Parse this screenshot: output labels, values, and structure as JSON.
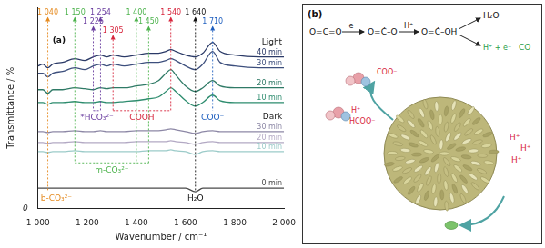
{
  "chart_data": {
    "type": "line",
    "panel_label": "(a)",
    "x_label": "Wavenumber / cm⁻¹",
    "y_label": "Transmittance / %",
    "xlim": [
      1000,
      2000
    ],
    "xticks": [
      {
        "value": 1000,
        "label": "1 000"
      },
      {
        "value": 1200,
        "label": "1 200"
      },
      {
        "value": 1400,
        "label": "1 400"
      },
      {
        "value": 1600,
        "label": "1 600"
      },
      {
        "value": 1800,
        "label": "1 800"
      },
      {
        "value": 2000,
        "label": "2 000"
      }
    ],
    "ylim": [
      0,
      110
    ],
    "yticks": [
      0
    ],
    "grid": false,
    "x": [
      1000,
      1020,
      1040,
      1060,
      1100,
      1150,
      1190,
      1225,
      1254,
      1280,
      1305,
      1350,
      1400,
      1450,
      1490,
      1520,
      1540,
      1560,
      1600,
      1640,
      1670,
      1710,
      1740,
      1800,
      1900,
      2000
    ],
    "series": [
      {
        "name": "40 min",
        "group": "Light",
        "color": "#2b3a67",
        "line_style": "solid",
        "values": [
          78,
          79,
          77,
          79,
          80,
          82,
          81,
          83,
          84,
          83,
          84,
          83,
          84,
          85,
          85,
          86,
          87,
          86,
          84,
          83,
          85,
          91,
          86,
          84,
          83,
          83
        ]
      },
      {
        "name": "30 min",
        "group": "Light",
        "color": "#3d4f7d",
        "line_style": "solid",
        "values": [
          74,
          74,
          72,
          74,
          75,
          77,
          76,
          78,
          79,
          78,
          79,
          78,
          79,
          80,
          80,
          81,
          82,
          81,
          78,
          76,
          79,
          86,
          80,
          78,
          77,
          77
        ]
      },
      {
        "name": "20 min",
        "group": "Light",
        "color": "#2f7a66",
        "line_style": "solid",
        "values": [
          65,
          65,
          63,
          65,
          65,
          66,
          65.5,
          65,
          66,
          65.5,
          66,
          66,
          67,
          68,
          70,
          74,
          76,
          73,
          67,
          64,
          66,
          70,
          67,
          66,
          66,
          66
        ]
      },
      {
        "name": "10 min",
        "group": "Light",
        "color": "#2d8c6e",
        "line_style": "solid",
        "values": [
          58,
          58,
          57,
          58,
          58,
          58.5,
          58,
          58,
          58.5,
          58,
          58,
          58.5,
          59,
          60,
          61,
          64,
          66,
          64,
          59,
          56,
          58,
          62,
          59,
          58,
          58,
          58
        ]
      },
      {
        "name": "30 min",
        "group": "Dark",
        "color": "#8d88a6",
        "line_style": "solid",
        "values": [
          42,
          42,
          41.5,
          42,
          42,
          42.5,
          42,
          42,
          42.5,
          42,
          42,
          42,
          42.5,
          42.5,
          42.5,
          43,
          43.5,
          43,
          42,
          41,
          42,
          42.5,
          42,
          42,
          42,
          42
        ]
      },
      {
        "name": "20 min",
        "group": "Dark",
        "color": "#b3a9c4",
        "line_style": "solid",
        "values": [
          36,
          36,
          35.5,
          36,
          36,
          36.5,
          36,
          36,
          36,
          36,
          36,
          36,
          36.5,
          36.5,
          36.5,
          36.5,
          37,
          36.5,
          36,
          35,
          36,
          36.5,
          36,
          36,
          36,
          36
        ]
      },
      {
        "name": "10 min",
        "group": "Dark",
        "color": "#9ccbc9",
        "line_style": "solid",
        "values": [
          31,
          31,
          30.5,
          31,
          31,
          31.5,
          31,
          31,
          31,
          31,
          31,
          31,
          31,
          31.5,
          31.5,
          31.5,
          32,
          31.5,
          31,
          29.5,
          31,
          31.5,
          31,
          31,
          31,
          31
        ]
      },
      {
        "name": "0 min",
        "color": "#4a4a4a",
        "line_style": "solid",
        "values": [
          11,
          11,
          11,
          11,
          11,
          11,
          11,
          11,
          11,
          11,
          11,
          11,
          11,
          11,
          11,
          11,
          11,
          11,
          11,
          9,
          11,
          11,
          11,
          11,
          11,
          11
        ]
      }
    ],
    "annotations": [
      {
        "text": "b-CO₃²⁻",
        "color": "#e58a1f",
        "peaks": [
          {
            "x": 1040,
            "label": "1 040"
          }
        ]
      },
      {
        "text": "m-CO₃²⁻",
        "color": "#4db34d",
        "peaks": [
          {
            "x": 1150,
            "label": "1 150"
          },
          {
            "x": 1400,
            "label": "1 400"
          },
          {
            "x": 1450,
            "label": "1 450"
          }
        ]
      },
      {
        "text": "*HCO₃²⁻",
        "color": "#6b3fa0",
        "peaks": [
          {
            "x": 1225,
            "label": "1 225"
          },
          {
            "x": 1254,
            "label": "1 254"
          }
        ]
      },
      {
        "text": "COOH",
        "color": "#d7263d",
        "peaks": [
          {
            "x": 1305,
            "label": "1 305"
          },
          {
            "x": 1540,
            "label": "1 540"
          }
        ]
      },
      {
        "text": "H₂O",
        "color": "#111111",
        "peaks": [
          {
            "x": 1640,
            "label": "1 640"
          }
        ]
      },
      {
        "text": "COO⁻",
        "color": "#1f5fbf",
        "peaks": [
          {
            "x": 1710,
            "label": "1 710"
          }
        ]
      }
    ]
  },
  "diagram": {
    "panel_label": "(b)",
    "scheme": {
      "species": [
        "O=C=O",
        "O=Ċ–O",
        "O=Ċ–OH"
      ],
      "step_labels": [
        "e⁻",
        "H⁺"
      ],
      "byproduct": "H₂O",
      "last_step": "H⁺ + e⁻",
      "product": "CO"
    },
    "adsorbates": [
      "COO⁻",
      "H⁺",
      "HCOO⁻"
    ],
    "protons": [
      "H⁺",
      "H⁺",
      "H⁺"
    ]
  }
}
